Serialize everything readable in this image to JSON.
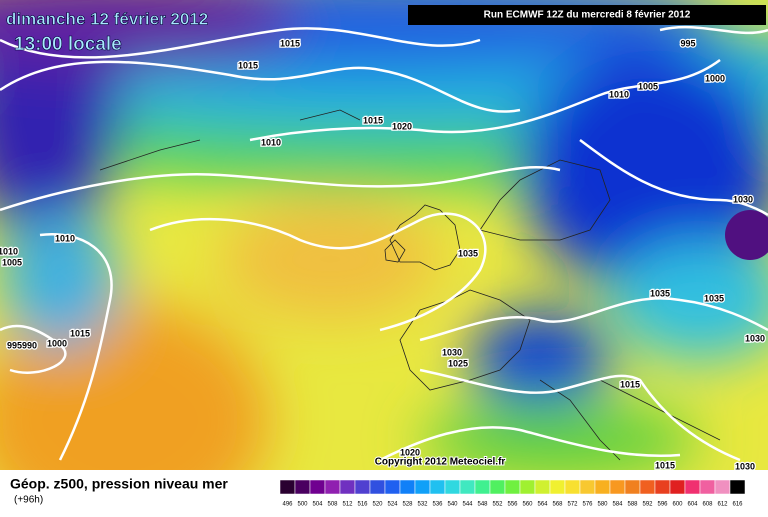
{
  "header": {
    "date": "dimanche 12 février 2012",
    "time": "13:00 locale",
    "run": "Run ECMWF 12Z du mercredi 8 février 2012"
  },
  "isobar_labels": [
    "1015",
    "1015",
    "995",
    "1005",
    "1000",
    "1010",
    "1015",
    "1020",
    "1010",
    "1030",
    "1010",
    "1010",
    "1005",
    "1035",
    "1015",
    "1035",
    "1035",
    "1030",
    "995990",
    "1000",
    "1030",
    "1025",
    "1015",
    "1020",
    "1015",
    "1030"
  ],
  "copyright": "Copyright 2012 Meteociel.fr",
  "legend": {
    "title": "Géop. z500, pression niveau mer",
    "lead": "(+96h)",
    "scale": [
      "496",
      "500",
      "504",
      "508",
      "512",
      "516",
      "520",
      "524",
      "528",
      "532",
      "536",
      "540",
      "544",
      "548",
      "552",
      "556",
      "560",
      "564",
      "568",
      "572",
      "576",
      "580",
      "584",
      "588",
      "592",
      "596",
      "600",
      "604",
      "608",
      "612",
      "616"
    ]
  }
}
